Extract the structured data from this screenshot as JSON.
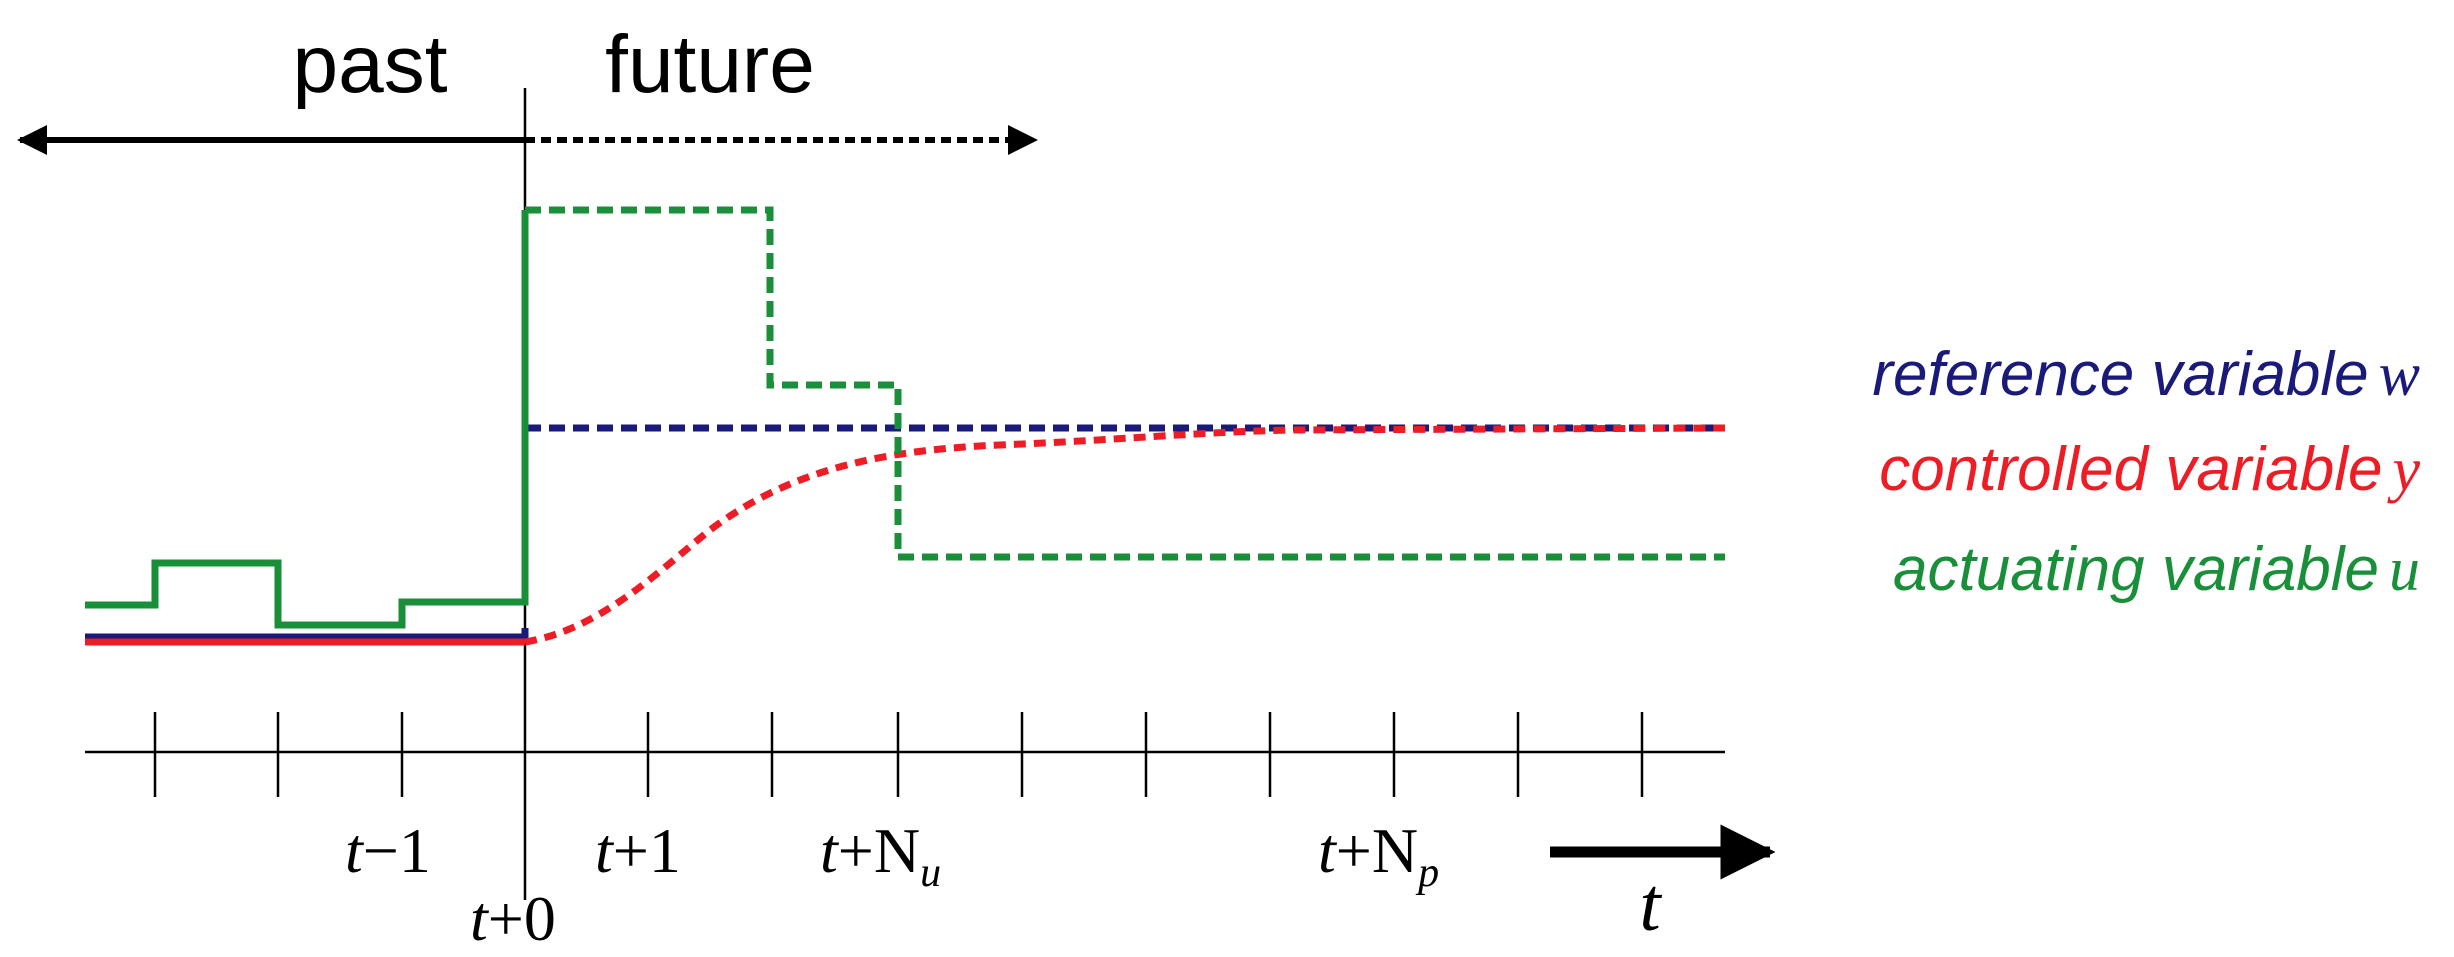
{
  "header": {
    "past_label": "past",
    "future_label": "future"
  },
  "legend": {
    "reference": "reference variable",
    "reference_symbol": "w",
    "controlled": "controlled variable",
    "controlled_symbol": "y",
    "actuating": "actuating variable",
    "actuating_symbol": "u"
  },
  "time_axis": {
    "labels": {
      "t_minus_1": {
        "t": "t",
        "rest": "−1"
      },
      "t_plus_0": {
        "t": "t",
        "rest": "+0"
      },
      "t_plus_1": {
        "t": "t",
        "rest": "+1"
      },
      "t_plus_nu": {
        "t": "t",
        "rest": "+N",
        "sub": "u"
      },
      "t_plus_np": {
        "t": "t",
        "rest": "+N",
        "sub": "p"
      }
    },
    "axis_symbol": "t"
  },
  "colors": {
    "reference": "#1a1a7a",
    "controlled": "#ee1c24",
    "actuating": "#1a8f3a",
    "axis": "#000000"
  }
}
